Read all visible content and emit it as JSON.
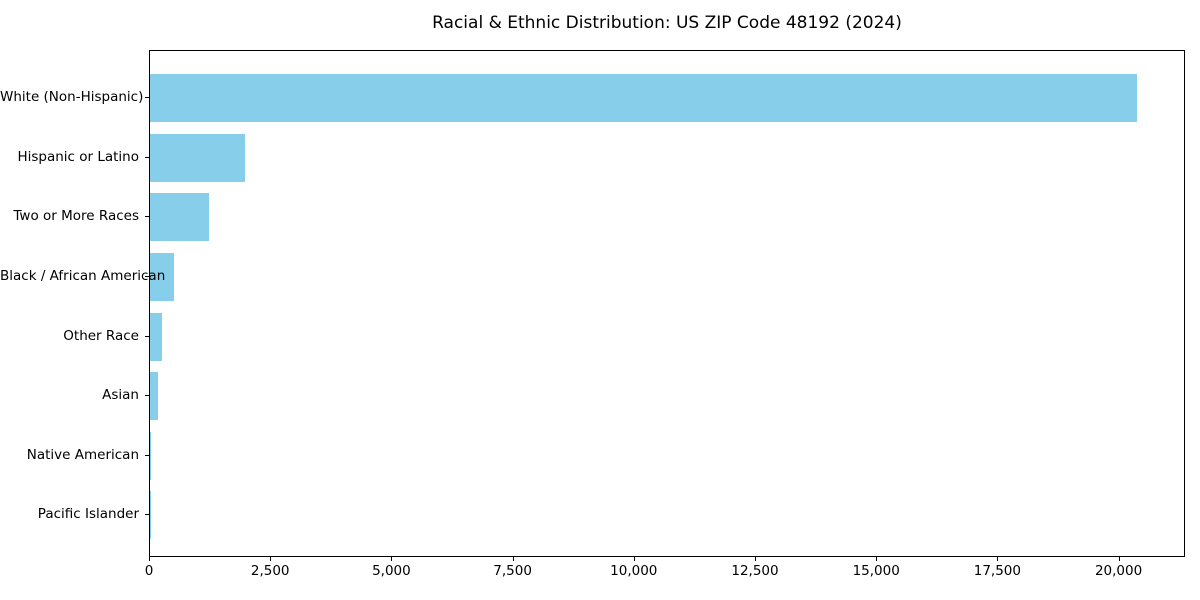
{
  "page": {
    "background_color": "#ffffff",
    "text_color": "#000000"
  },
  "chart_data": {
    "type": "bar",
    "orientation": "horizontal",
    "title": "Racial & Ethnic Distribution: US ZIP Code 48192 (2024)",
    "xlabel": "",
    "ylabel": "",
    "categories": [
      "White (Non-Hispanic)",
      "Hispanic or Latino",
      "Two or More Races",
      "Black / African American",
      "Other Race",
      "Asian",
      "Native American",
      "Pacific Islander"
    ],
    "values": [
      20350,
      1950,
      1220,
      495,
      250,
      175,
      30,
      8
    ],
    "xlim": [
      0,
      21370
    ],
    "x_ticks": [
      {
        "value": 0,
        "label": "0"
      },
      {
        "value": 2500,
        "label": "2,500"
      },
      {
        "value": 5000,
        "label": "5,000"
      },
      {
        "value": 7500,
        "label": "7,500"
      },
      {
        "value": 10000,
        "label": "10,000"
      },
      {
        "value": 12500,
        "label": "12,500"
      },
      {
        "value": 15000,
        "label": "15,000"
      },
      {
        "value": 17500,
        "label": "17,500"
      },
      {
        "value": 20000,
        "label": "20,000"
      }
    ],
    "bar_color": "#87CEEB",
    "spine_color": "#000000",
    "grid": false,
    "legend_position": "none"
  }
}
